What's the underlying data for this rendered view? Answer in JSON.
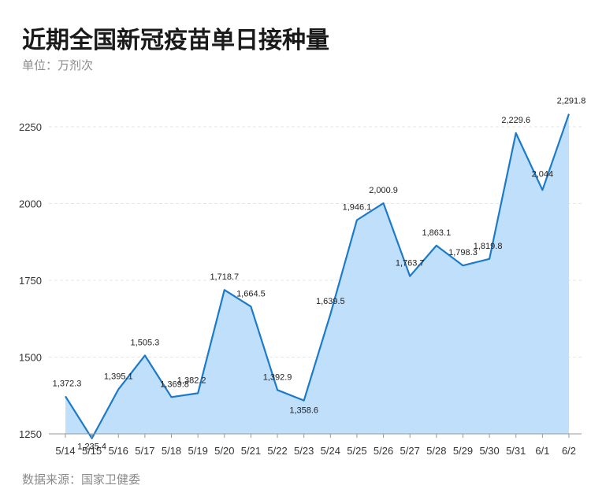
{
  "chart_data": {
    "type": "area",
    "title": "近期全国新冠疫苗单日接种量",
    "subtitle": "单位：万剂次",
    "source": "数据来源：国家卫健委",
    "categories": [
      "5/14",
      "5/15",
      "5/16",
      "5/17",
      "5/18",
      "5/19",
      "5/20",
      "5/21",
      "5/22",
      "5/23",
      "5/24",
      "5/25",
      "5/26",
      "5/27",
      "5/28",
      "5/29",
      "5/30",
      "5/31",
      "6/1",
      "6/2"
    ],
    "values": [
      1372.3,
      1235.4,
      1395.1,
      1505.3,
      1369.8,
      1382.2,
      1718.7,
      1664.5,
      1392.9,
      1358.6,
      1639.5,
      1946.1,
      2000.9,
      1763.7,
      1863.1,
      1798.3,
      1819.8,
      2229.6,
      2044,
      2291.8
    ],
    "labels": [
      "1,372.3",
      "1,235.4",
      "1,395.1",
      "1,505.3",
      "1,369.8",
      "1,382.2",
      "1,718.7",
      "1,664.5",
      "1,392.9",
      "1,358.6",
      "1,639.5",
      "1,946.1",
      "2,000.9",
      "1,763.7",
      "1,863.1",
      "1,798.3",
      "1,819.8",
      "2,229.6",
      "2,044",
      "2,291.8"
    ],
    "yticks": [
      1250,
      1500,
      1750,
      2000,
      2250
    ],
    "ylim": [
      1250,
      2350
    ],
    "grid": true,
    "colors": {
      "line": "#1b7ac9",
      "fill": "#bfdffb",
      "grid": "#e6e6e6",
      "axis": "#999999"
    }
  }
}
